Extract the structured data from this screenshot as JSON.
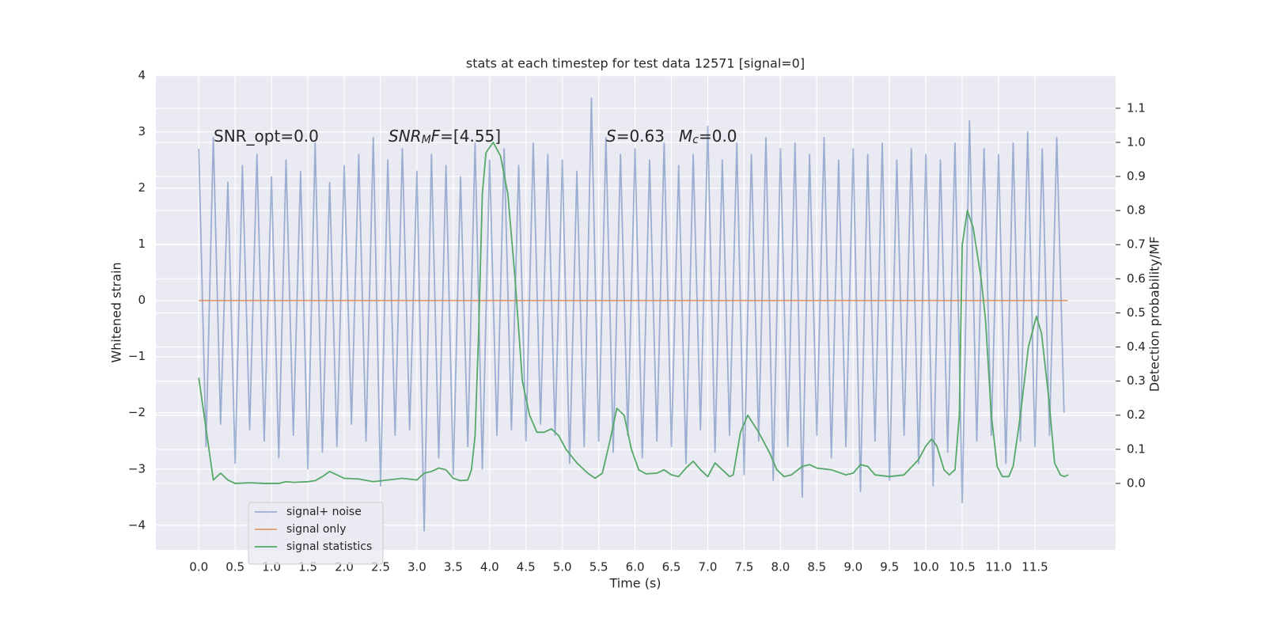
{
  "chart_data": {
    "type": "line",
    "title": "stats at each timestep for test data 12571 [signal=0]",
    "xlabel": "Time (s)",
    "ylabel": "Whitened strain",
    "y2label": "Detection probability/MF",
    "xlim": [
      -0.59,
      12.61
    ],
    "ylim": [
      -4.44,
      4.01
    ],
    "y2lim": [
      -0.195,
      1.197
    ],
    "xticks": [
      {
        "value": 0,
        "label": "0.0"
      },
      {
        "value": 0.5,
        "label": "0.5"
      },
      {
        "value": 1,
        "label": "1.0"
      },
      {
        "value": 1.5,
        "label": "1.5"
      },
      {
        "value": 2,
        "label": "2.0"
      },
      {
        "value": 2.5,
        "label": "2.5"
      },
      {
        "value": 3,
        "label": "3.0"
      },
      {
        "value": 3.5,
        "label": "3.5"
      },
      {
        "value": 4,
        "label": "4.0"
      },
      {
        "value": 4.5,
        "label": "4.5"
      },
      {
        "value": 5,
        "label": "5.0"
      },
      {
        "value": 5.5,
        "label": "5.5"
      },
      {
        "value": 6,
        "label": "6.0"
      },
      {
        "value": 6.5,
        "label": "6.5"
      },
      {
        "value": 7,
        "label": "7.0"
      },
      {
        "value": 7.5,
        "label": "7.5"
      },
      {
        "value": 8,
        "label": "8.0"
      },
      {
        "value": 8.5,
        "label": "8.5"
      },
      {
        "value": 9,
        "label": "9.0"
      },
      {
        "value": 9.5,
        "label": "9.5"
      },
      {
        "value": 10,
        "label": "10.0"
      },
      {
        "value": 10.5,
        "label": "10.5"
      },
      {
        "value": 11,
        "label": "11.0"
      },
      {
        "value": 11.5,
        "label": "11.5"
      }
    ],
    "yticks": [
      {
        "value": -4,
        "label": "−4"
      },
      {
        "value": -3,
        "label": "−3"
      },
      {
        "value": -2,
        "label": "−2"
      },
      {
        "value": -1,
        "label": "−1"
      },
      0,
      1,
      2,
      3,
      4
    ],
    "y2ticks": [
      {
        "value": 0,
        "label": "0.0"
      },
      {
        "value": 0.1,
        "label": "0.1"
      },
      {
        "value": 0.2,
        "label": "0.2"
      },
      {
        "value": 0.3,
        "label": "0.3"
      },
      {
        "value": 0.4,
        "label": "0.4"
      },
      {
        "value": 0.5,
        "label": "0.5"
      },
      {
        "value": 0.6,
        "label": "0.6"
      },
      {
        "value": 0.7,
        "label": "0.7"
      },
      {
        "value": 0.8,
        "label": "0.8"
      },
      {
        "value": 0.9,
        "label": "0.9"
      },
      {
        "value": 1,
        "label": "1.0"
      },
      {
        "value": 1.1,
        "label": "1.1"
      }
    ],
    "grid": true,
    "legend": "lower left",
    "annotations": [
      {
        "parts": [
          {
            "text": "SNR_opt=0.0"
          }
        ]
      },
      {
        "parts": [
          {
            "text": "SNR",
            "italic": true
          },
          {
            "text": "M",
            "italic": true,
            "sub": true
          },
          {
            "text": "F",
            "italic": true
          },
          {
            "text": "=[4.55]"
          }
        ]
      },
      {
        "parts": [
          {
            "text": "S",
            "italic": true
          },
          {
            "text": "=0.63"
          }
        ]
      },
      {
        "parts": [
          {
            "text": "M",
            "italic": true
          },
          {
            "text": "c",
            "italic": true,
            "sub": true
          },
          {
            "text": "=0.0"
          }
        ]
      }
    ],
    "series": [
      {
        "name": "signal+ noise",
        "color": "#4c72b0",
        "opacity": 0.5,
        "x": [
          0,
          0.1,
          0.2,
          0.3,
          0.4,
          0.5,
          0.6,
          0.7,
          0.8,
          0.9,
          1,
          1.1,
          1.2,
          1.3,
          1.4,
          1.5,
          1.6,
          1.7,
          1.8,
          1.9,
          2,
          2.1,
          2.2,
          2.3,
          2.4,
          2.5,
          2.6,
          2.7,
          2.8,
          2.9,
          3,
          3.1,
          3.2,
          3.3,
          3.4,
          3.5,
          3.6,
          3.7,
          3.8,
          3.9,
          4,
          4.1,
          4.2,
          4.3,
          4.4,
          4.5,
          4.6,
          4.7,
          4.8,
          4.9,
          5,
          5.1,
          5.2,
          5.3,
          5.4,
          5.5,
          5.6,
          5.7,
          5.8,
          5.9,
          6,
          6.1,
          6.2,
          6.3,
          6.4,
          6.5,
          6.6,
          6.7,
          6.8,
          6.9,
          7,
          7.1,
          7.2,
          7.3,
          7.4,
          7.5,
          7.6,
          7.7,
          7.8,
          7.9,
          8,
          8.1,
          8.2,
          8.3,
          8.4,
          8.5,
          8.6,
          8.7,
          8.8,
          8.9,
          9,
          9.1,
          9.2,
          9.3,
          9.4,
          9.5,
          9.6,
          9.7,
          9.8,
          9.9,
          10,
          10.1,
          10.2,
          10.3,
          10.4,
          10.5,
          10.6,
          10.7,
          10.8,
          10.9,
          11,
          11.1,
          11.2,
          11.3,
          11.4,
          11.5,
          11.6,
          11.7,
          11.8,
          11.9
        ],
        "values": [
          2.7,
          -2.6,
          2.9,
          -2.2,
          2.1,
          -2.9,
          2.4,
          -2.3,
          2.6,
          -2.5,
          2.2,
          -2.8,
          2.5,
          -2.4,
          2.3,
          -3.0,
          2.8,
          -2.7,
          2.1,
          -2.6,
          2.4,
          -2.2,
          2.6,
          -2.5,
          2.9,
          -3.3,
          2.5,
          -2.4,
          2.7,
          -2.3,
          2.3,
          -4.1,
          2.6,
          -2.8,
          2.4,
          -3.1,
          2.2,
          -2.6,
          2.8,
          -3.0,
          2.5,
          -2.4,
          2.7,
          -2.3,
          2.4,
          -2.5,
          2.8,
          -2.2,
          2.6,
          -2.4,
          2.5,
          -2.9,
          2.3,
          -2.6,
          3.6,
          -2.5,
          2.9,
          -2.7,
          2.6,
          -2.4,
          2.7,
          -2.8,
          2.5,
          -2.5,
          2.8,
          -2.6,
          2.4,
          -2.9,
          2.6,
          -2.3,
          3.1,
          -2.7,
          2.5,
          -2.4,
          2.8,
          -3.1,
          2.6,
          -2.5,
          2.9,
          -3.2,
          2.7,
          -2.6,
          2.8,
          -3.5,
          2.6,
          -2.4,
          2.9,
          -2.8,
          2.5,
          -2.6,
          2.7,
          -3.4,
          2.6,
          -2.5,
          2.8,
          -3.2,
          2.5,
          -2.4,
          2.7,
          -2.9,
          2.6,
          -3.3,
          2.5,
          -2.7,
          2.8,
          -3.6,
          3.2,
          -2.5,
          2.7,
          -2.4,
          2.6,
          -2.9,
          2.8,
          -2.5,
          3.0,
          -2.6,
          2.7,
          -2.4,
          2.9,
          -2.0
        ]
      },
      {
        "name": "signal only",
        "color": "#dd8452",
        "opacity": 0.8,
        "x": [
          0,
          11.95
        ],
        "values": [
          0,
          0
        ]
      },
      {
        "name": "signal statistics",
        "color": "#55a868",
        "opacity": 1,
        "axis": "y2",
        "x": [
          0,
          0.1,
          0.2,
          0.3,
          0.4,
          0.5,
          0.7,
          0.9,
          1.1,
          1.2,
          1.3,
          1.5,
          1.6,
          1.7,
          1.8,
          1.9,
          2.0,
          2.2,
          2.4,
          2.6,
          2.8,
          3.0,
          3.1,
          3.2,
          3.3,
          3.4,
          3.5,
          3.6,
          3.7,
          3.75,
          3.8,
          3.85,
          3.9,
          3.95,
          4.05,
          4.15,
          4.25,
          4.35,
          4.45,
          4.55,
          4.65,
          4.75,
          4.85,
          4.95,
          5.05,
          5.2,
          5.35,
          5.45,
          5.55,
          5.65,
          5.75,
          5.85,
          5.95,
          6.05,
          6.15,
          6.3,
          6.4,
          6.5,
          6.6,
          6.7,
          6.8,
          6.9,
          7.0,
          7.1,
          7.2,
          7.3,
          7.35,
          7.45,
          7.55,
          7.7,
          7.85,
          7.95,
          8.05,
          8.15,
          8.3,
          8.4,
          8.5,
          8.7,
          8.9,
          9.0,
          9.1,
          9.2,
          9.3,
          9.5,
          9.7,
          9.9,
          10.0,
          10.08,
          10.15,
          10.25,
          10.32,
          10.4,
          10.46,
          10.5,
          10.57,
          10.65,
          10.76,
          10.82,
          10.9,
          10.98,
          11.05,
          11.14,
          11.2,
          11.3,
          11.41,
          11.52,
          11.59,
          11.69,
          11.77,
          11.85,
          11.9,
          11.96
        ],
        "values": [
          0.31,
          0.16,
          0.01,
          0.03,
          0.01,
          0.0,
          0.002,
          0.0,
          0.0,
          0.005,
          0.003,
          0.005,
          0.008,
          0.02,
          0.035,
          0.025,
          0.015,
          0.013,
          0.005,
          0.01,
          0.015,
          0.01,
          0.03,
          0.035,
          0.045,
          0.04,
          0.015,
          0.008,
          0.01,
          0.04,
          0.14,
          0.45,
          0.85,
          0.97,
          1.0,
          0.96,
          0.85,
          0.6,
          0.3,
          0.2,
          0.15,
          0.15,
          0.16,
          0.14,
          0.1,
          0.06,
          0.03,
          0.015,
          0.03,
          0.12,
          0.22,
          0.2,
          0.1,
          0.04,
          0.028,
          0.03,
          0.04,
          0.025,
          0.02,
          0.045,
          0.065,
          0.04,
          0.02,
          0.06,
          0.04,
          0.02,
          0.025,
          0.15,
          0.2,
          0.15,
          0.09,
          0.04,
          0.02,
          0.025,
          0.05,
          0.055,
          0.045,
          0.04,
          0.025,
          0.03,
          0.055,
          0.05,
          0.025,
          0.02,
          0.025,
          0.07,
          0.11,
          0.13,
          0.11,
          0.04,
          0.025,
          0.04,
          0.2,
          0.7,
          0.8,
          0.75,
          0.6,
          0.48,
          0.2,
          0.05,
          0.02,
          0.02,
          0.05,
          0.2,
          0.4,
          0.49,
          0.44,
          0.25,
          0.06,
          0.025,
          0.02,
          0.025
        ]
      }
    ]
  }
}
